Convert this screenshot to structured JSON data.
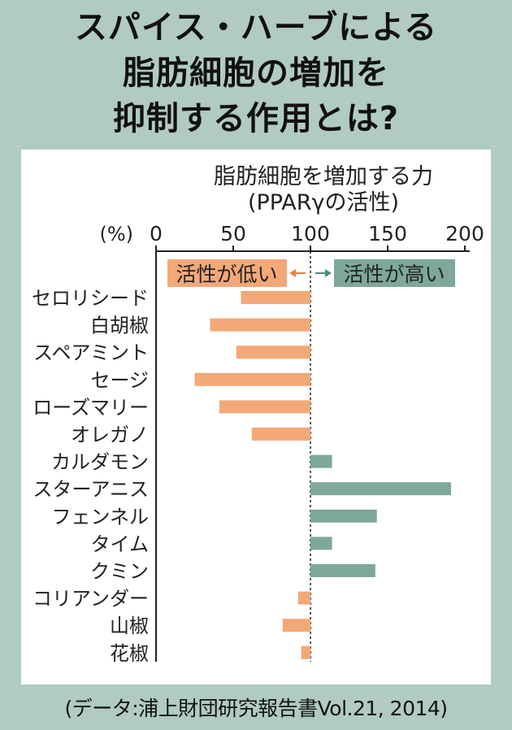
{
  "title_lines": [
    "スパイス・ハーブによる",
    "脂肪細胞の増加を",
    "抑制する作用とは?"
  ],
  "source": "(データ:浦上財団研究報告書Vol.21, 2014)",
  "colors": {
    "background": "#b1cbc0",
    "low": "#f3a877",
    "high": "#7ea898",
    "arrow_low": "#e8823f",
    "arrow_high": "#4f8c79"
  },
  "chart_data": {
    "type": "bar",
    "orientation": "horizontal",
    "title": "脂肪細胞を増加する力",
    "subtitle": "(PPARγの活性)",
    "unit_label": "(%)",
    "xlim": [
      0,
      200
    ],
    "baseline": 100,
    "ticks": [
      0,
      50,
      100,
      150,
      200
    ],
    "legend_low": "活性が低い",
    "legend_high": "活性が高い",
    "categories": [
      "セロリシード",
      "白胡椒",
      "スペアミント",
      "セージ",
      "ローズマリー",
      "オレガノ",
      "カルダモン",
      "スターアニス",
      "フェンネル",
      "タイム",
      "クミン",
      "コリアンダー",
      "山椒",
      "花椒"
    ],
    "values": [
      55,
      35,
      52,
      25,
      41,
      62,
      114,
      191,
      143,
      114,
      142,
      92,
      82,
      94
    ]
  }
}
